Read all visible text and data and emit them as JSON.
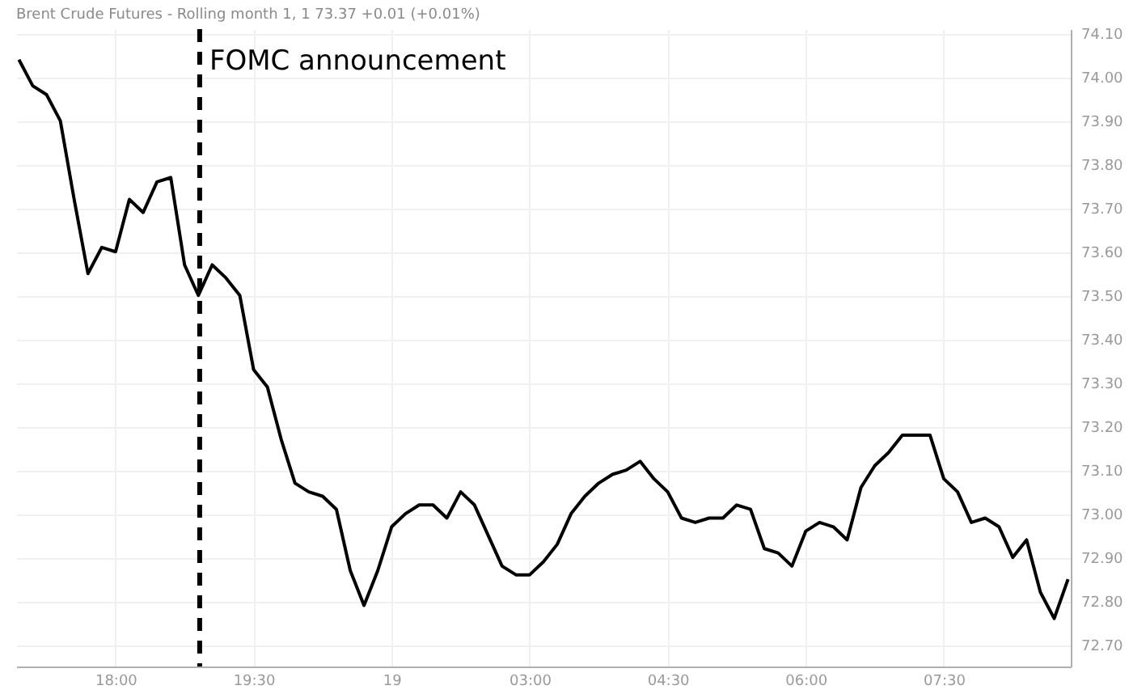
{
  "chart_data": {
    "type": "line",
    "title": "Brent Crude Futures - Rolling month 1, 1  73.37  +0.01 (+0.01%)",
    "categories": [
      null,
      null,
      null,
      null,
      null,
      null,
      null,
      "18:00",
      null,
      null,
      null,
      null,
      null,
      null,
      null,
      null,
      null,
      "19:30",
      null,
      null,
      null,
      null,
      null,
      null,
      null,
      null,
      null,
      "19",
      null,
      null,
      null,
      null,
      null,
      null,
      null,
      null,
      null,
      "03:00",
      null,
      null,
      null,
      null,
      null,
      null,
      null,
      null,
      null,
      "04:30",
      null,
      null,
      null,
      null,
      null,
      null,
      null,
      null,
      null,
      "06:00",
      null,
      null,
      null,
      null,
      null,
      null,
      null,
      null,
      null,
      "07:30",
      null,
      null,
      null,
      null,
      null,
      null,
      null,
      null,
      null
    ],
    "series": [
      {
        "color": "#000000",
        "values": [
          74.04,
          73.98,
          73.96,
          73.9,
          73.72,
          73.55,
          73.61,
          73.6,
          73.72,
          73.69,
          73.76,
          73.77,
          73.57,
          73.5,
          73.57,
          73.54,
          73.5,
          73.33,
          73.29,
          73.17,
          73.07,
          73.05,
          73.04,
          73.01,
          72.87,
          72.79,
          72.87,
          72.97,
          73.0,
          73.02,
          73.02,
          72.99,
          73.05,
          73.02,
          72.95,
          72.88,
          72.86,
          72.86,
          72.89,
          72.93,
          73.0,
          73.04,
          73.07,
          73.09,
          73.1,
          73.12,
          73.08,
          73.05,
          72.99,
          72.98,
          72.99,
          72.99,
          73.02,
          73.01,
          72.92,
          72.91,
          72.88,
          72.96,
          72.98,
          72.97,
          72.94,
          73.06,
          73.11,
          73.14,
          73.18,
          73.18,
          73.18,
          73.08,
          73.05,
          72.98,
          72.99,
          72.97,
          72.9,
          72.94,
          72.82,
          72.76,
          72.85
        ]
      }
    ],
    "ylim": [
      72.65,
      74.11
    ],
    "yticks": [
      {
        "value": 72.7,
        "label": "72.70"
      },
      {
        "value": 72.8,
        "label": "72.80"
      },
      {
        "value": 72.9,
        "label": "72.90"
      },
      {
        "value": 73.0,
        "label": "73.00"
      },
      {
        "value": 73.1,
        "label": "73.10"
      },
      {
        "value": 73.2,
        "label": "73.20"
      },
      {
        "value": 73.3,
        "label": "73.30"
      },
      {
        "value": 73.4,
        "label": "73.40"
      },
      {
        "value": 73.5,
        "label": "73.50"
      },
      {
        "value": 73.6,
        "label": "73.60"
      },
      {
        "value": 73.7,
        "label": "73.70"
      },
      {
        "value": 73.8,
        "label": "73.80"
      },
      {
        "value": 73.9,
        "label": "73.90"
      },
      {
        "value": 74.0,
        "label": "74.00"
      },
      {
        "value": 74.1,
        "label": "74.10"
      }
    ],
    "annotations": [
      "FOMC announcement"
    ],
    "grid": true,
    "marker": "none",
    "line_style": "solid"
  }
}
